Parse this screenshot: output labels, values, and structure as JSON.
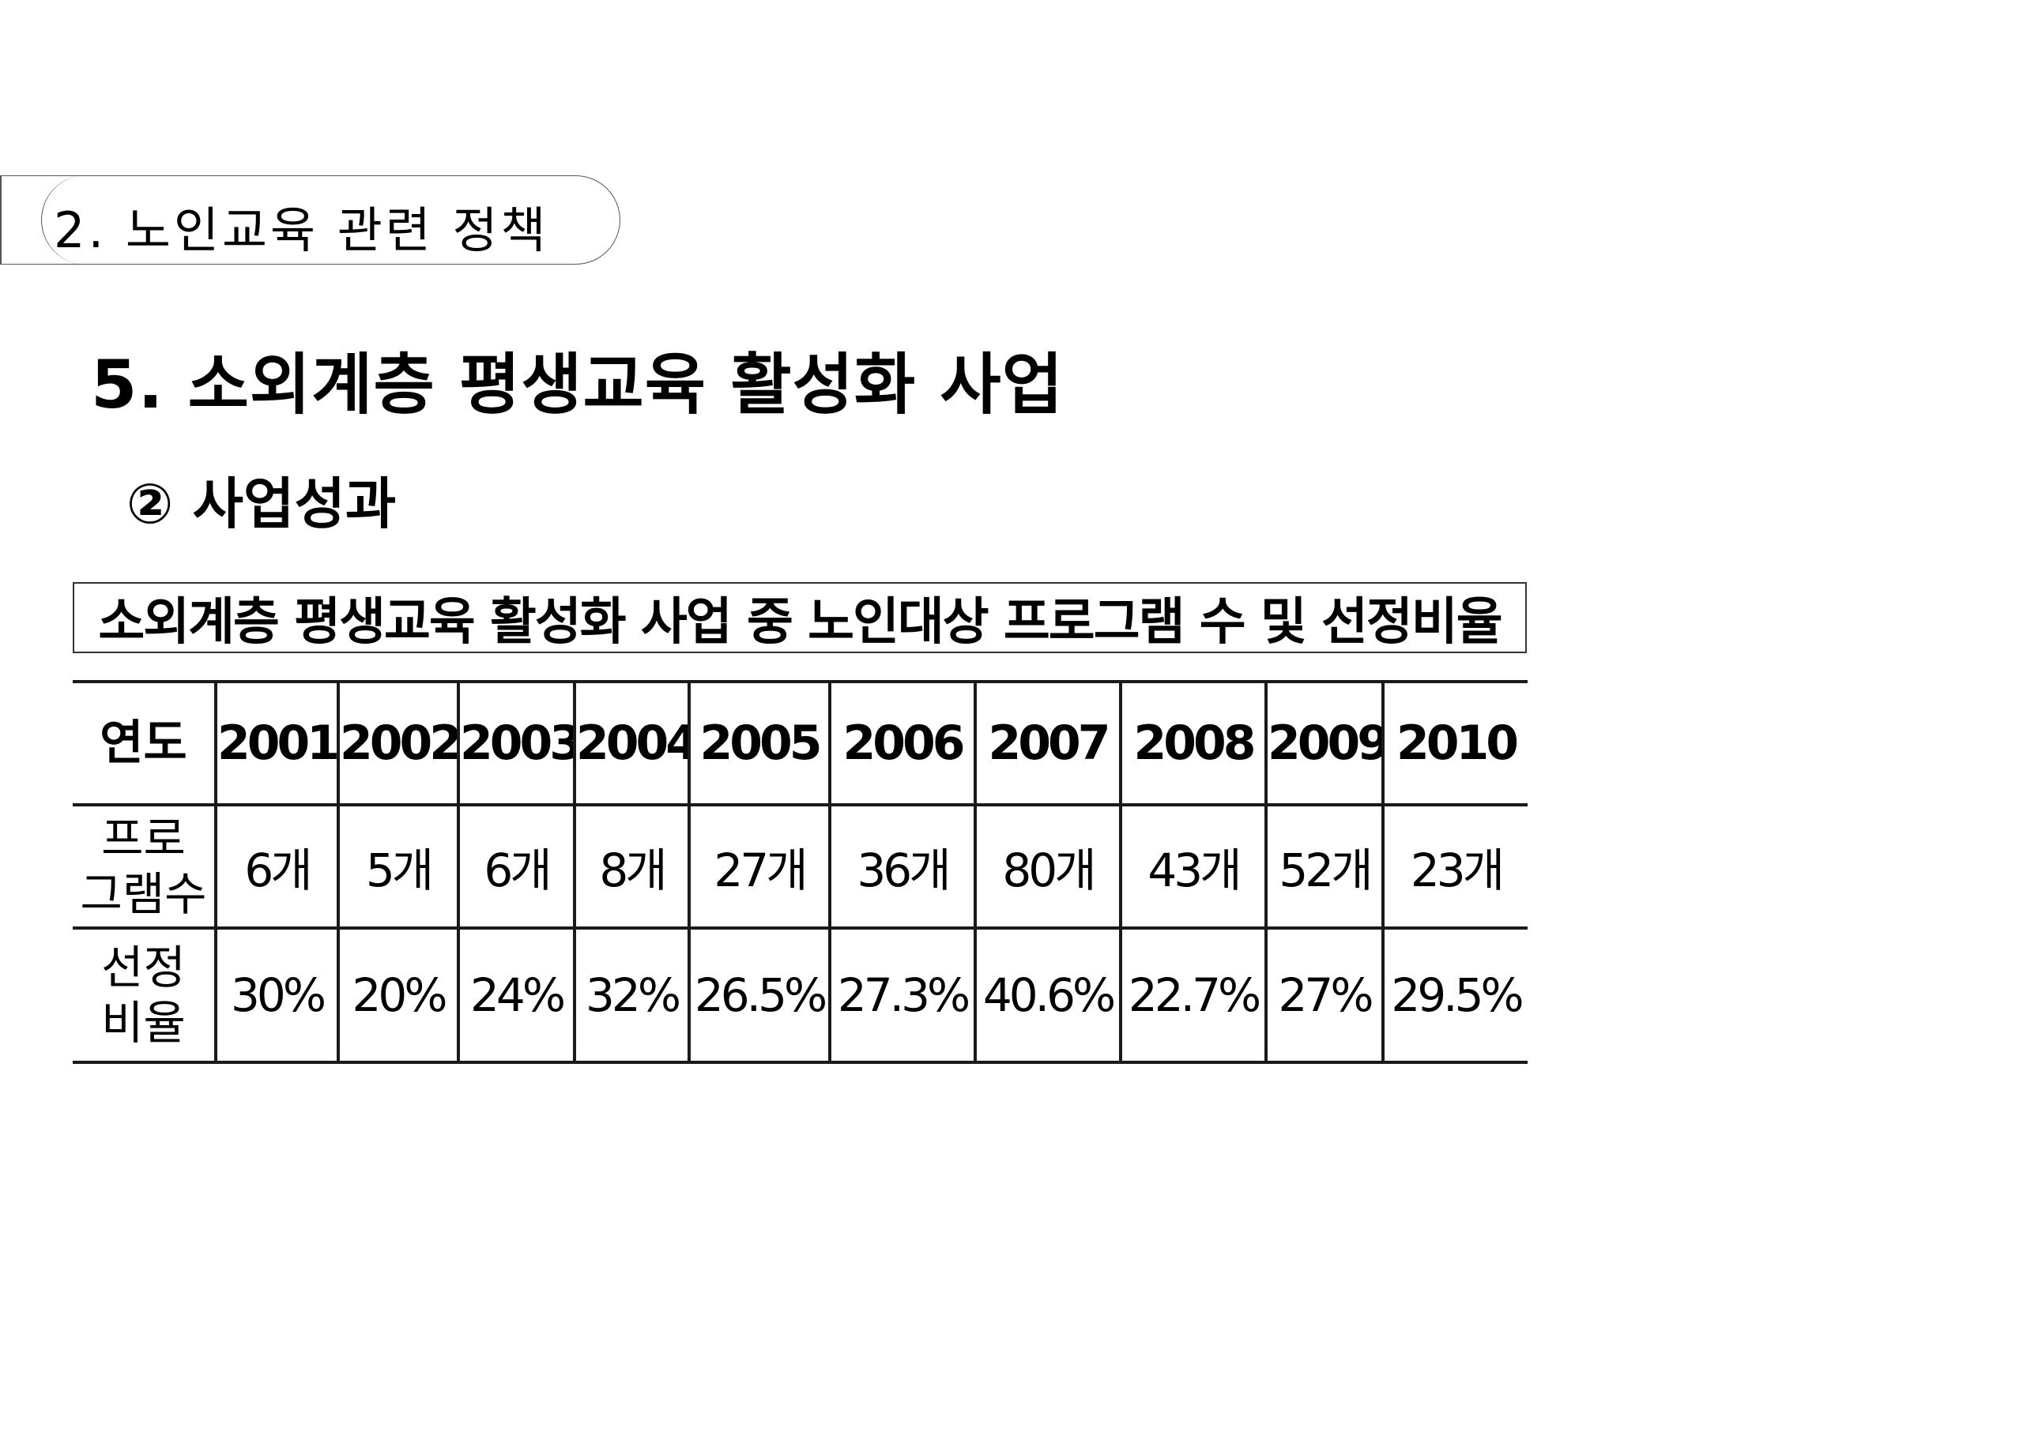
{
  "section_tab": {
    "label": "2. 노인교육 관련 정책"
  },
  "main_title": "5.  소외계층 평생교육 활성화 사업",
  "sub_title": "②  사업성과",
  "table_caption": "소외계층 평생교육 활성화 사업 중 노인대상 프로그램 수 및 선정비율",
  "table": {
    "year_header": "연도",
    "count_header_line1": "프로",
    "count_header_line2": "그램수",
    "rate_header_line1": "선정",
    "rate_header_line2": "비율",
    "years": [
      "2001",
      "2002",
      "2003",
      "2004",
      "2005",
      "2006",
      "2007",
      "2008",
      "2009",
      "2010"
    ],
    "counts": [
      "6개",
      "5개",
      "6개",
      "8개",
      "27개",
      "36개",
      "80개",
      "43개",
      "52개",
      "23개"
    ],
    "rates": [
      "30%",
      "20%",
      "24%",
      "32%",
      "26.5%",
      "27.3%",
      "40.6%",
      "22.7%",
      "27%",
      "29.5%"
    ]
  }
}
